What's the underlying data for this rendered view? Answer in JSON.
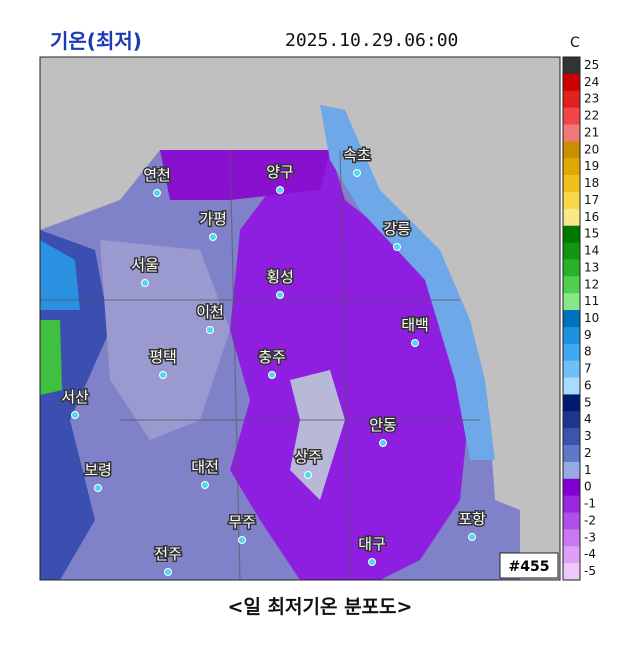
{
  "header": {
    "title": "기온(최저)",
    "datetime": "2025.10.29.06:00"
  },
  "legend": {
    "unit": "C",
    "ticks": [
      25,
      24,
      23,
      22,
      21,
      20,
      19,
      18,
      17,
      16,
      15,
      14,
      13,
      12,
      11,
      10,
      9,
      8,
      7,
      6,
      5,
      4,
      3,
      2,
      1,
      0,
      -1,
      -2,
      -3,
      -4,
      -5
    ],
    "colors": [
      "#333333",
      "#cc0000",
      "#e32020",
      "#f04848",
      "#f07878",
      "#c89000",
      "#e0a800",
      "#f0c020",
      "#f8d848",
      "#f8e888",
      "#007800",
      "#139613",
      "#28b428",
      "#50d050",
      "#88e888",
      "#0070c0",
      "#1f8fe0",
      "#40a8f0",
      "#70c0f8",
      "#a8dcff",
      "#001a70",
      "#1e3590",
      "#3a55b0",
      "#6078c8",
      "#98a8e0",
      "#8000d0",
      "#9a28e0",
      "#b050e8",
      "#c878f0",
      "#dca0f8",
      "#f0c8fc"
    ]
  },
  "map": {
    "cities": [
      "연천",
      "양구",
      "속초",
      "가평",
      "강릉",
      "서울",
      "횡성",
      "이천",
      "태백",
      "평택",
      "충주",
      "서산",
      "안동",
      "상주",
      "대전",
      "보령",
      "포항",
      "무주",
      "대구",
      "전주"
    ],
    "badge": "#455"
  },
  "caption": "<일 최저기온 분포도>"
}
